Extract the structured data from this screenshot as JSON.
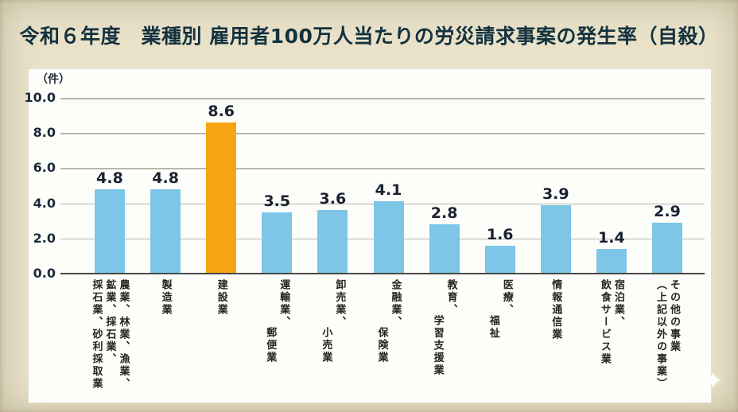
{
  "header": {
    "title": "令和６年度　業種別 雇用者100万人当たりの労災請求事案の発生率（自殺）"
  },
  "chart_data": {
    "type": "bar",
    "title": "令和６年度　業種別 雇用者100万人当たりの労災請求事案の発生率（自殺）",
    "unit_label": "（件）",
    "xlabel": "",
    "ylabel": "件",
    "ylim": [
      0,
      10
    ],
    "grid": true,
    "legend": "none",
    "yticks": [
      {
        "v": 10,
        "label": "10.0"
      },
      {
        "v": 8,
        "label": "8.0"
      },
      {
        "v": 6,
        "label": "6.0"
      },
      {
        "v": 4,
        "label": "4.0"
      },
      {
        "v": 2,
        "label": "2.0"
      },
      {
        "v": 0,
        "label": "0.0"
      }
    ],
    "categories": [
      "農業、林業、漁業、鉱業、採石業、採石業、砂利採取業",
      "製造業",
      "建設業",
      "運輸業、郵便業",
      "卸売業、小売業",
      "金融業、保険業",
      "教育、学習支援業",
      "医療、福祉",
      "情報通信業",
      "宿泊業、飲食サービス業",
      "その他の事業（上記以外の事業）"
    ],
    "category_lines": [
      {
        "lines": [
          "農業、林業、漁業、",
          "鉱業、採石業、",
          "採石業、砂利採取業"
        ],
        "indents": [
          0,
          0,
          0
        ]
      },
      {
        "lines": [
          "製造業"
        ],
        "indents": [
          0
        ]
      },
      {
        "lines": [
          "建設業"
        ],
        "indents": [
          0
        ]
      },
      {
        "lines": [
          "運輸業、",
          "郵便業"
        ],
        "indents": [
          0,
          4
        ]
      },
      {
        "lines": [
          "卸売業、",
          "小売業"
        ],
        "indents": [
          0,
          4
        ]
      },
      {
        "lines": [
          "金融業、",
          "保険業"
        ],
        "indents": [
          0,
          4
        ]
      },
      {
        "lines": [
          "教育、",
          "学習支援業"
        ],
        "indents": [
          0,
          3
        ]
      },
      {
        "lines": [
          "医療、",
          "福祉"
        ],
        "indents": [
          0,
          3
        ]
      },
      {
        "lines": [
          "情報通信業"
        ],
        "indents": [
          0
        ]
      },
      {
        "lines": [
          "宿泊業、",
          "飲食サービス業"
        ],
        "indents": [
          0,
          0
        ]
      },
      {
        "lines": [
          "その他の事業",
          "（上記以外の事業）"
        ],
        "indents": [
          0,
          0
        ]
      }
    ],
    "values": [
      4.8,
      4.8,
      8.6,
      3.5,
      3.6,
      4.1,
      2.8,
      1.6,
      3.9,
      1.4,
      2.9
    ],
    "highlight_index": 2,
    "colors": {
      "bar": "#7dc6e8",
      "highlight": "#f6a414",
      "axis": "#4a4a46",
      "gridline": "#b6b6ae",
      "tick_label": "#1b2a38",
      "value_label": "#1a2230",
      "category_label": "#26261f",
      "title": "#14323f",
      "background": "#e9e2c9",
      "panel": "#fdfdfa"
    }
  },
  "watermark": {
    "icon_glyph": "✦"
  }
}
